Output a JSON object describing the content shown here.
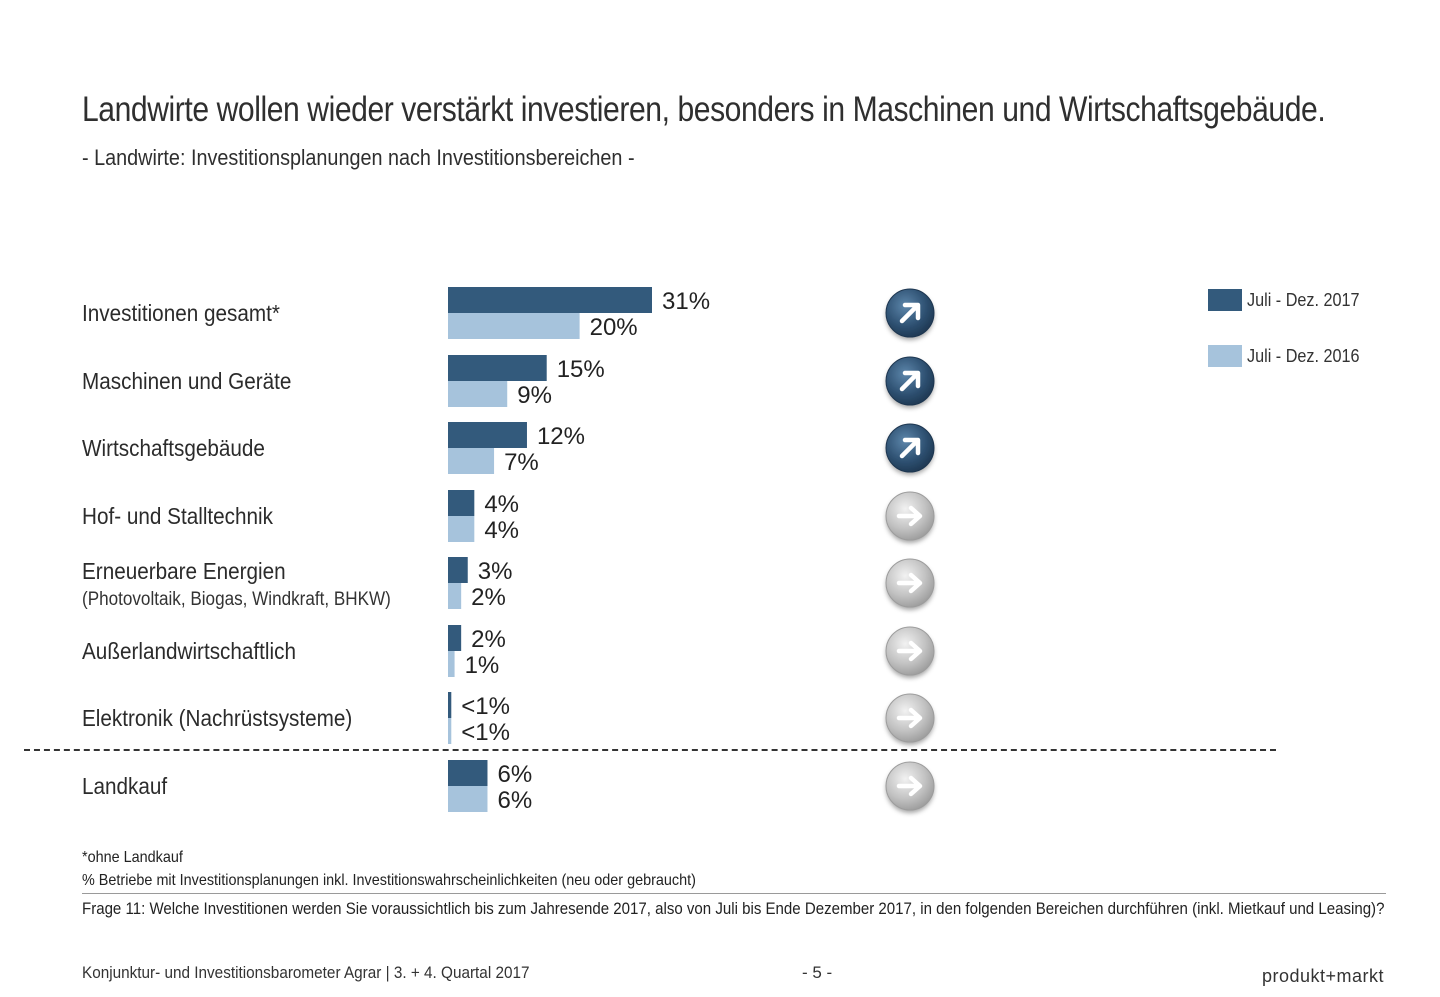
{
  "header": {
    "title": "Landwirte wollen wieder verstärkt investieren, besonders in Maschinen und Wirtschaftsgebäude.",
    "subtitle": "- Landwirte: Investitionsplanungen nach Investitionsbereichen -"
  },
  "legend": [
    {
      "label": "Juli - Dez. 2017",
      "color": "#335a7c"
    },
    {
      "label": "Juli - Dez. 2016",
      "color": "#a6c3dc"
    }
  ],
  "rows": [
    {
      "label": "Investitionen gesamt*",
      "sub": ""
    },
    {
      "label": "Maschinen und Geräte",
      "sub": ""
    },
    {
      "label": "Wirtschaftsgebäude",
      "sub": ""
    },
    {
      "label": "Hof- und Stalltechnik",
      "sub": ""
    },
    {
      "label": "Erneuerbare Energien",
      "sub": "(Photovoltaik, Biogas, Windkraft, BHKW)"
    },
    {
      "label": "Außerlandwirtschaftlich",
      "sub": ""
    },
    {
      "label": "Elektronik (Nachrüstsysteme)",
      "sub": ""
    },
    {
      "label": "Landkauf",
      "sub": ""
    }
  ],
  "chart_data": {
    "type": "bar",
    "orientation": "horizontal",
    "categories": [
      "Investitionen gesamt*",
      "Maschinen und Geräte",
      "Wirtschaftsgebäude",
      "Hof- und Stalltechnik",
      "Erneuerbare Energien",
      "Außerlandwirtschaftlich",
      "Elektronik (Nachrüstsysteme)",
      "Landkauf"
    ],
    "series": [
      {
        "name": "Juli - Dez. 2017",
        "color": "#335a7c",
        "values": [
          31,
          15,
          12,
          4,
          3,
          2,
          0.5,
          6
        ],
        "labels": [
          "31%",
          "15%",
          "12%",
          "4%",
          "3%",
          "2%",
          "<1%",
          "6%"
        ]
      },
      {
        "name": "Juli - Dez. 2016",
        "color": "#a6c3dc",
        "values": [
          20,
          9,
          7,
          4,
          2,
          1,
          0.5,
          6
        ],
        "labels": [
          "20%",
          "9%",
          "7%",
          "4%",
          "2%",
          "1%",
          "<1%",
          "6%"
        ]
      }
    ],
    "trend": [
      "up",
      "up",
      "up",
      "flat",
      "flat",
      "flat",
      "flat",
      "flat"
    ],
    "trend_colors": {
      "up": "#2f5273",
      "flat": "#b5b5b5"
    },
    "xlim": [
      0,
      31
    ],
    "grid": false,
    "legend_position": "top-right"
  },
  "footnotes": {
    "note1": "*ohne Landkauf",
    "note2": "% Betriebe mit Investitionsplanungen inkl. Investitionswahrscheinlichkeiten (neu oder gebraucht)",
    "question": "Frage 11: Welche Investitionen werden Sie voraussichtlich bis zum Jahresende 2017, also von Juli bis Ende Dezember 2017, in den folgenden Bereichen durchführen (inkl. Mietkauf und Leasing)?"
  },
  "footer": {
    "left": "Konjunktur- und Investitionsbarometer Agrar | 3. + 4. Quartal 2017",
    "page": "- 5 -",
    "brand": "produkt+markt"
  }
}
